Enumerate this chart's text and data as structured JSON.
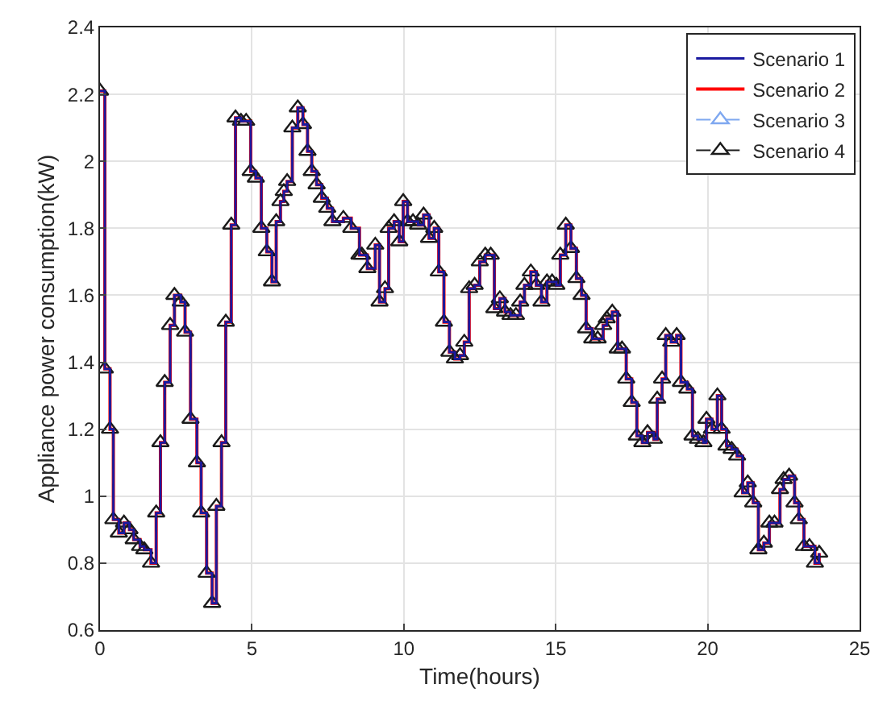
{
  "chart_data": {
    "type": "step",
    "xlabel": "Time(hours)",
    "ylabel": "Appliance power consumption(kW)",
    "x": [
      0,
      0.16,
      0.33,
      0.44,
      0.62,
      0.79,
      0.97,
      1.11,
      1.32,
      1.46,
      1.68,
      1.85,
      1.99,
      2.13,
      2.31,
      2.45,
      2.66,
      2.8,
      2.98,
      3.19,
      3.33,
      3.51,
      3.69,
      3.83,
      4.0,
      4.14,
      4.32,
      4.46,
      4.64,
      4.81,
      4.96,
      5.13,
      5.31,
      5.49,
      5.66,
      5.8,
      5.94,
      6.05,
      6.16,
      6.33,
      6.51,
      6.68,
      6.83,
      6.97,
      7.13,
      7.3,
      7.48,
      7.65,
      8.01,
      8.27,
      8.54,
      8.62,
      8.8,
      9.06,
      9.2,
      9.38,
      9.5,
      9.68,
      9.85,
      9.98,
      10.12,
      10.3,
      10.47,
      10.65,
      10.83,
      11.0,
      11.15,
      11.32,
      11.5,
      11.68,
      11.85,
      11.99,
      12.15,
      12.33,
      12.5,
      12.68,
      12.86,
      12.98,
      13.16,
      13.33,
      13.51,
      13.69,
      13.83,
      13.97,
      14.18,
      14.36,
      14.53,
      14.71,
      14.88,
      15.02,
      15.15,
      15.33,
      15.5,
      15.68,
      15.85,
      16.0,
      16.2,
      16.38,
      16.56,
      16.68,
      16.86,
      17.04,
      17.18,
      17.32,
      17.5,
      17.67,
      17.85,
      18.02,
      18.23,
      18.34,
      18.5,
      18.62,
      18.8,
      18.98,
      19.12,
      19.33,
      19.5,
      19.68,
      19.86,
      19.96,
      20.14,
      20.32,
      20.46,
      20.62,
      20.79,
      20.97,
      21.15,
      21.32,
      21.5,
      21.67,
      21.85,
      22.03,
      22.2,
      22.38,
      22.5,
      22.68,
      22.86,
      23.0,
      23.17,
      23.35,
      23.53,
      23.67
    ],
    "series": [
      {
        "name": "Scenario 1",
        "color": "#1a1aa0",
        "line_style": "solid",
        "marker": "none",
        "values": [
          2.21,
          1.38,
          1.2,
          0.93,
          0.89,
          0.92,
          0.9,
          0.87,
          0.85,
          0.84,
          0.8,
          0.95,
          1.16,
          1.34,
          1.51,
          1.6,
          1.58,
          1.49,
          1.23,
          1.1,
          0.95,
          0.77,
          0.68,
          0.97,
          1.16,
          1.52,
          1.81,
          2.13,
          2.12,
          2.12,
          1.97,
          1.95,
          1.8,
          1.73,
          1.64,
          1.82,
          1.88,
          1.91,
          1.94,
          2.1,
          2.16,
          2.11,
          2.03,
          1.97,
          1.93,
          1.89,
          1.86,
          1.82,
          1.83,
          1.8,
          1.72,
          1.72,
          1.68,
          1.75,
          1.58,
          1.62,
          1.8,
          1.82,
          1.76,
          1.88,
          1.82,
          1.82,
          1.81,
          1.84,
          1.77,
          1.8,
          1.67,
          1.52,
          1.43,
          1.41,
          1.42,
          1.46,
          1.62,
          1.63,
          1.7,
          1.72,
          1.72,
          1.56,
          1.59,
          1.55,
          1.54,
          1.54,
          1.58,
          1.63,
          1.67,
          1.63,
          1.58,
          1.64,
          1.64,
          1.63,
          1.72,
          1.81,
          1.74,
          1.65,
          1.6,
          1.5,
          1.47,
          1.47,
          1.51,
          1.53,
          1.55,
          1.44,
          1.44,
          1.35,
          1.28,
          1.18,
          1.16,
          1.19,
          1.17,
          1.29,
          1.35,
          1.48,
          1.46,
          1.48,
          1.34,
          1.32,
          1.18,
          1.17,
          1.16,
          1.23,
          1.2,
          1.3,
          1.2,
          1.15,
          1.14,
          1.12,
          1.01,
          1.04,
          0.98,
          0.84,
          0.86,
          0.92,
          0.92,
          1.02,
          1.05,
          1.06,
          0.98,
          0.93,
          0.85,
          0.85,
          0.8,
          0.83
        ]
      },
      {
        "name": "Scenario 2",
        "color": "#ff0000",
        "line_style": "solid",
        "marker": "none",
        "values": [
          2.21,
          1.38,
          1.2,
          0.93,
          0.89,
          0.92,
          0.9,
          0.87,
          0.85,
          0.84,
          0.8,
          0.95,
          1.16,
          1.34,
          1.51,
          1.6,
          1.58,
          1.49,
          1.23,
          1.1,
          0.95,
          0.77,
          0.68,
          0.97,
          1.16,
          1.52,
          1.81,
          2.13,
          2.12,
          2.12,
          1.97,
          1.95,
          1.8,
          1.73,
          1.64,
          1.82,
          1.88,
          1.91,
          1.94,
          2.1,
          2.16,
          2.11,
          2.03,
          1.97,
          1.93,
          1.89,
          1.86,
          1.82,
          1.83,
          1.8,
          1.72,
          1.72,
          1.68,
          1.75,
          1.58,
          1.62,
          1.8,
          1.82,
          1.76,
          1.88,
          1.82,
          1.82,
          1.81,
          1.84,
          1.77,
          1.8,
          1.67,
          1.52,
          1.43,
          1.41,
          1.42,
          1.46,
          1.62,
          1.63,
          1.7,
          1.72,
          1.72,
          1.56,
          1.59,
          1.55,
          1.54,
          1.54,
          1.58,
          1.63,
          1.67,
          1.63,
          1.58,
          1.64,
          1.64,
          1.63,
          1.72,
          1.81,
          1.74,
          1.65,
          1.6,
          1.5,
          1.47,
          1.47,
          1.51,
          1.53,
          1.55,
          1.44,
          1.44,
          1.35,
          1.28,
          1.18,
          1.16,
          1.19,
          1.17,
          1.29,
          1.35,
          1.48,
          1.46,
          1.48,
          1.34,
          1.32,
          1.18,
          1.17,
          1.16,
          1.23,
          1.2,
          1.3,
          1.2,
          1.15,
          1.14,
          1.12,
          1.01,
          1.04,
          0.98,
          0.84,
          0.86,
          0.92,
          0.92,
          1.02,
          1.05,
          1.06,
          0.98,
          0.93,
          0.85,
          0.85,
          0.8,
          0.83
        ]
      },
      {
        "name": "Scenario 3",
        "color": "#7fa8f0",
        "line_style": "dashed",
        "marker": "triangle",
        "values": [
          null,
          null,
          null,
          null,
          null,
          null,
          null,
          null,
          null,
          null,
          null,
          null,
          null,
          null,
          null,
          null,
          null,
          null,
          null,
          null,
          null,
          null,
          null,
          null,
          null,
          null,
          null,
          null,
          null,
          null,
          null,
          null,
          null,
          null,
          null,
          null,
          null,
          null,
          null,
          null,
          null,
          null,
          null,
          null,
          null,
          null,
          null,
          null,
          null,
          null,
          null,
          null,
          null,
          null,
          null,
          null,
          null,
          null,
          null,
          null,
          null,
          null,
          null,
          null,
          null,
          null,
          null,
          null,
          null,
          null,
          null,
          null,
          null,
          null,
          null,
          null,
          null,
          null,
          null,
          null,
          null,
          null,
          null,
          null,
          null,
          null,
          null,
          null,
          null,
          null,
          null,
          null,
          null,
          null,
          null,
          null,
          null,
          null,
          null,
          null,
          null,
          null,
          null,
          null,
          null,
          null,
          null,
          null,
          null,
          null,
          null,
          null,
          null,
          null,
          null,
          null,
          null,
          null,
          null,
          null,
          null,
          null,
          null,
          null,
          null,
          null,
          null,
          null,
          null,
          null,
          null,
          null,
          null,
          null,
          null,
          null,
          null,
          null,
          null,
          null,
          null,
          null
        ]
      },
      {
        "name": "Scenario 4",
        "color": "#1a1a1a",
        "line_style": "dashed",
        "marker": "triangle",
        "values": [
          2.21,
          1.38,
          1.2,
          0.93,
          0.89,
          0.92,
          0.9,
          0.87,
          0.85,
          0.84,
          0.8,
          0.95,
          1.16,
          1.34,
          1.51,
          1.6,
          1.58,
          1.49,
          1.23,
          1.1,
          0.95,
          0.77,
          0.68,
          0.97,
          1.16,
          1.52,
          1.81,
          2.13,
          2.12,
          2.12,
          1.97,
          1.95,
          1.8,
          1.73,
          1.64,
          1.82,
          1.88,
          1.91,
          1.94,
          2.1,
          2.16,
          2.11,
          2.03,
          1.97,
          1.93,
          1.89,
          1.86,
          1.82,
          1.83,
          1.8,
          1.72,
          1.72,
          1.68,
          1.75,
          1.58,
          1.62,
          1.8,
          1.82,
          1.76,
          1.88,
          1.82,
          1.82,
          1.81,
          1.84,
          1.77,
          1.8,
          1.67,
          1.52,
          1.43,
          1.41,
          1.42,
          1.46,
          1.62,
          1.63,
          1.7,
          1.72,
          1.72,
          1.56,
          1.59,
          1.55,
          1.54,
          1.54,
          1.58,
          1.63,
          1.67,
          1.63,
          1.58,
          1.64,
          1.64,
          1.63,
          1.72,
          1.81,
          1.74,
          1.65,
          1.6,
          1.5,
          1.47,
          1.47,
          1.51,
          1.53,
          1.55,
          1.44,
          1.44,
          1.35,
          1.28,
          1.18,
          1.16,
          1.19,
          1.17,
          1.29,
          1.35,
          1.48,
          1.46,
          1.48,
          1.34,
          1.32,
          1.18,
          1.17,
          1.16,
          1.23,
          1.2,
          1.3,
          1.2,
          1.15,
          1.14,
          1.12,
          1.01,
          1.04,
          0.98,
          0.84,
          0.86,
          0.92,
          0.92,
          1.02,
          1.05,
          1.06,
          0.98,
          0.93,
          0.85,
          0.85,
          0.8,
          0.83
        ]
      }
    ],
    "xlim": [
      0,
      25
    ],
    "xticks": [
      0,
      5,
      10,
      15,
      20,
      25
    ],
    "ylim": [
      0.6,
      2.4
    ],
    "yticks": [
      0.6,
      0.8,
      1,
      1.2,
      1.4,
      1.6,
      1.8,
      2,
      2.2,
      2.4
    ],
    "grid": true,
    "legend": "top right"
  }
}
